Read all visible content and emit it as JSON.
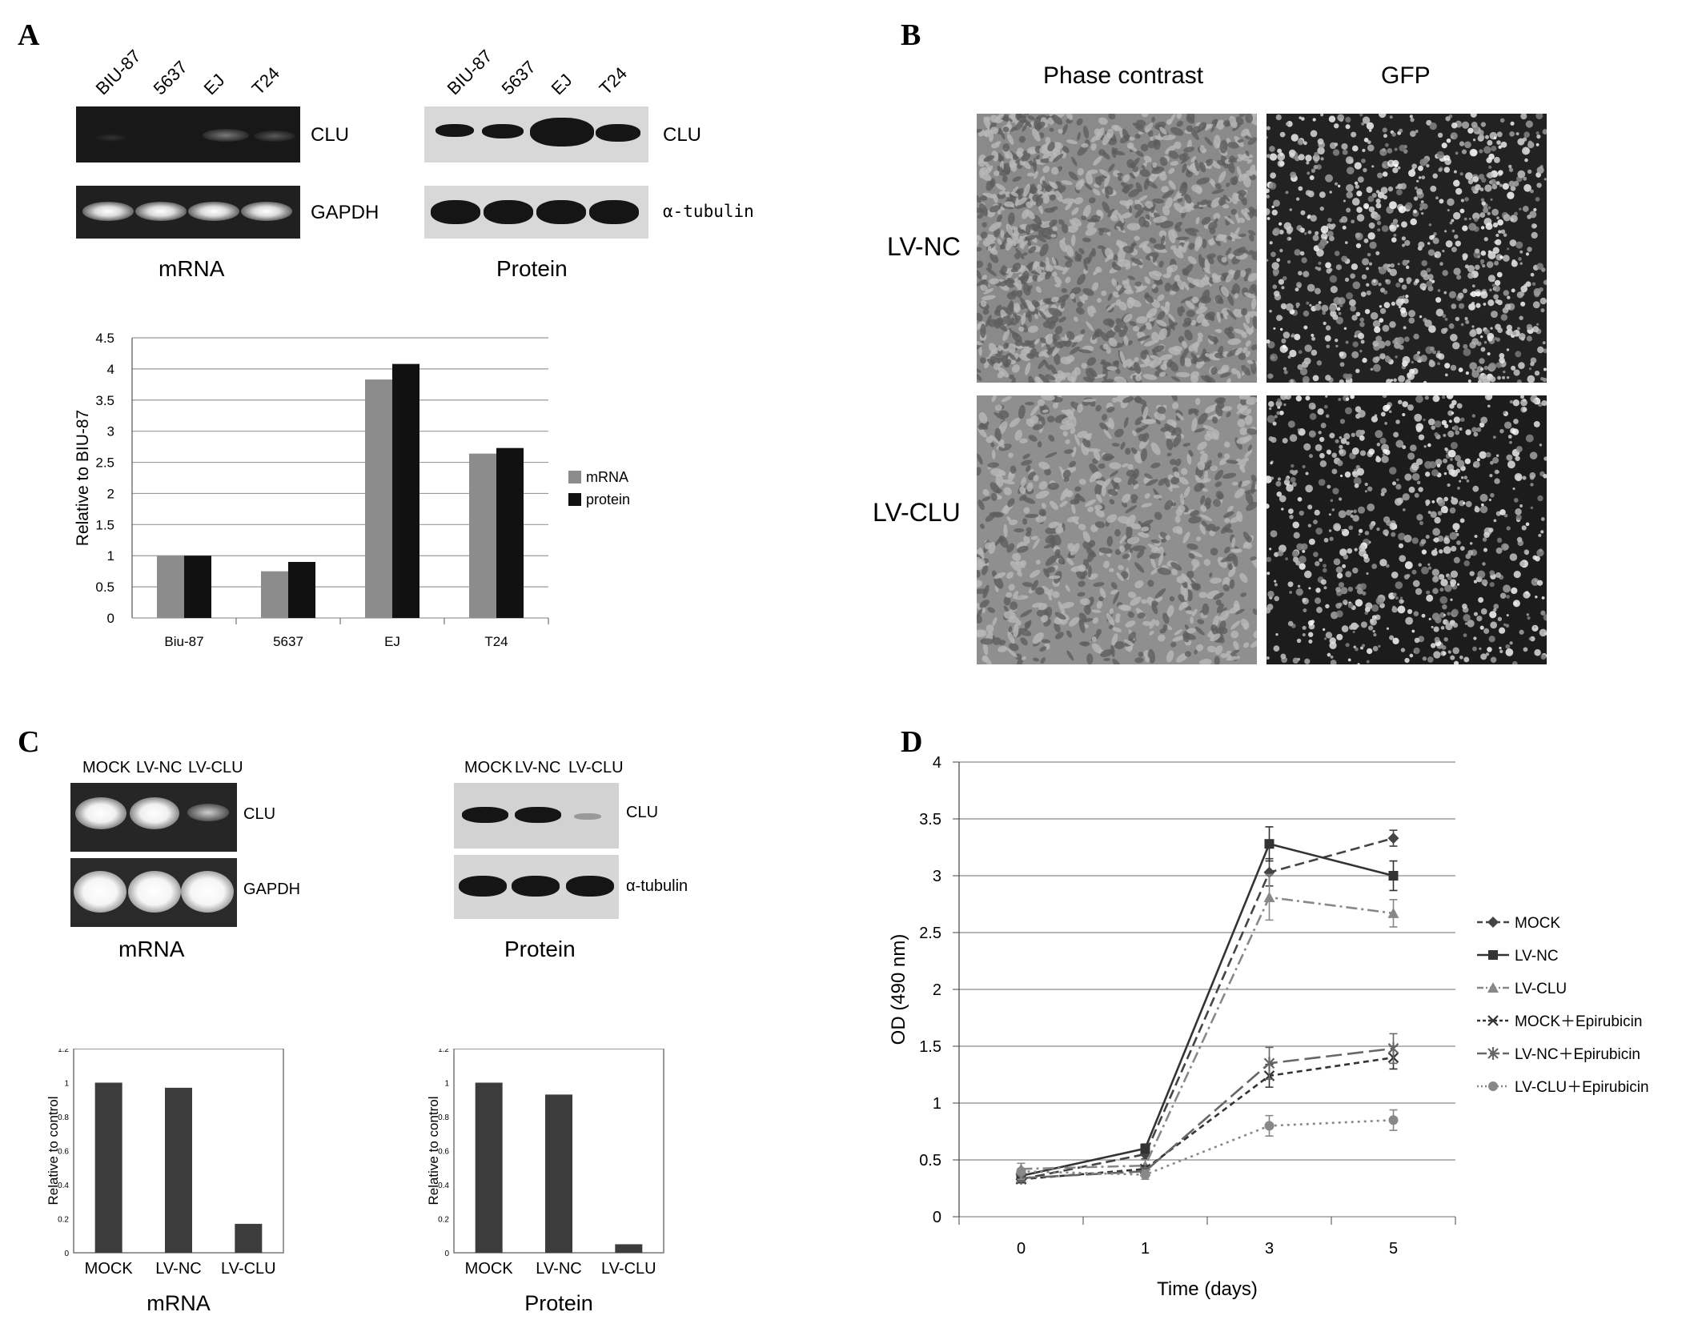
{
  "panels": {
    "A": {
      "letter": "A",
      "lanes": [
        "BIU-87",
        "5637",
        "EJ",
        "T24"
      ],
      "gel": {
        "row1": "CLU",
        "row2": "GAPDH",
        "caption": "mRNA"
      },
      "blot": {
        "row1": "CLU",
        "row2": "α-tubulin",
        "caption": "Protein"
      }
    },
    "B": {
      "letter": "B",
      "columns": [
        "Phase contrast",
        "GFP"
      ],
      "rows": [
        "LV-NC",
        "LV-CLU"
      ]
    },
    "C": {
      "letter": "C",
      "lanes": [
        "MOCK",
        "LV-NC",
        "LV-CLU"
      ],
      "gel": {
        "row1": "CLU",
        "row2": "GAPDH",
        "caption": "mRNA"
      },
      "blot": {
        "row1": "CLU",
        "row2": "α-tubulin",
        "caption": "Protein"
      }
    },
    "D": {
      "letter": "D"
    }
  },
  "colors": {
    "mrna": "#8c8c8c",
    "protein": "#111111",
    "bar_dark": "#3c3c3c",
    "line_dark": "#444444",
    "line_grey": "#888888"
  },
  "chart_data": [
    {
      "id": "A-bar",
      "type": "bar",
      "categories": [
        "Biu-87",
        "5637",
        "EJ",
        "T24"
      ],
      "series": [
        {
          "name": "mRNA",
          "values": [
            1.0,
            0.75,
            3.83,
            2.64
          ]
        },
        {
          "name": "protein",
          "values": [
            1.0,
            0.9,
            4.08,
            2.73
          ]
        }
      ],
      "ylabel": "Relative to BIU-87",
      "ylim": [
        0,
        4.5
      ],
      "yticks": [
        "0",
        "0.5",
        "1",
        "1.5",
        "2",
        "2.5",
        "3",
        "3.5",
        "4",
        "4.5"
      ],
      "grid": true,
      "legend": "right"
    },
    {
      "id": "C-mrna-bar",
      "type": "bar",
      "categories": [
        "MOCK",
        "LV-NC",
        "LV-CLU"
      ],
      "values": [
        1.0,
        0.97,
        0.17
      ],
      "ylabel": "Relative to control",
      "xlabel": "mRNA",
      "ylim": [
        0,
        1.2
      ],
      "yticks": [
        "0",
        "0.2",
        "0.4",
        "0.6",
        "0.8",
        "1",
        "1.2"
      ]
    },
    {
      "id": "C-protein-bar",
      "type": "bar",
      "categories": [
        "MOCK",
        "LV-NC",
        "LV-CLU"
      ],
      "values": [
        1.0,
        0.93,
        0.05
      ],
      "ylabel": "Relative to control",
      "xlabel": "Protein",
      "ylim": [
        0,
        1.2
      ],
      "yticks": [
        "0",
        "0.2",
        "0.4",
        "0.6",
        "0.8",
        "1",
        "1.2"
      ]
    },
    {
      "id": "D-line",
      "type": "line",
      "categories": [
        "0",
        "1",
        "3",
        "5"
      ],
      "ylabel": "OD (490 nm)",
      "xlabel": "Time (days)",
      "ylim": [
        0,
        4
      ],
      "yticks": [
        "0",
        "0.5",
        "1",
        "1.5",
        "2",
        "2.5",
        "3",
        "3.5",
        "4"
      ],
      "grid": true,
      "legend": "right",
      "series": [
        {
          "name": "MOCK",
          "values": [
            0.33,
            0.55,
            3.03,
            3.33
          ],
          "errors": [
            0.03,
            0.04,
            0.12,
            0.07
          ],
          "marker": "diamond",
          "dash": "12,6",
          "color": "#444444"
        },
        {
          "name": "LV-NC",
          "values": [
            0.36,
            0.6,
            3.28,
            3.0
          ],
          "errors": [
            0.04,
            0.04,
            0.15,
            0.13
          ],
          "marker": "square",
          "dash": "",
          "color": "#333333"
        },
        {
          "name": "LV-CLU",
          "values": [
            0.42,
            0.45,
            2.81,
            2.67
          ],
          "errors": [
            0.05,
            0.05,
            0.2,
            0.12
          ],
          "marker": "triangle",
          "dash": "14,5,3,5",
          "color": "#888888"
        },
        {
          "name": "MOCK＋Epirubicin",
          "values": [
            0.33,
            0.42,
            1.24,
            1.4
          ],
          "errors": [
            0.03,
            0.03,
            0.1,
            0.1
          ],
          "marker": "x",
          "dash": "7,5",
          "color": "#333333"
        },
        {
          "name": "LV-NC＋Epirubicin",
          "values": [
            0.34,
            0.4,
            1.35,
            1.48
          ],
          "errors": [
            0.03,
            0.03,
            0.14,
            0.13
          ],
          "marker": "star",
          "dash": "20,7",
          "color": "#666666"
        },
        {
          "name": "LV-CLU＋Epirubicin",
          "values": [
            0.4,
            0.37,
            0.8,
            0.85
          ],
          "errors": [
            0.07,
            0.04,
            0.09,
            0.09
          ],
          "marker": "circle",
          "dash": "3,5",
          "color": "#888888"
        }
      ]
    }
  ]
}
